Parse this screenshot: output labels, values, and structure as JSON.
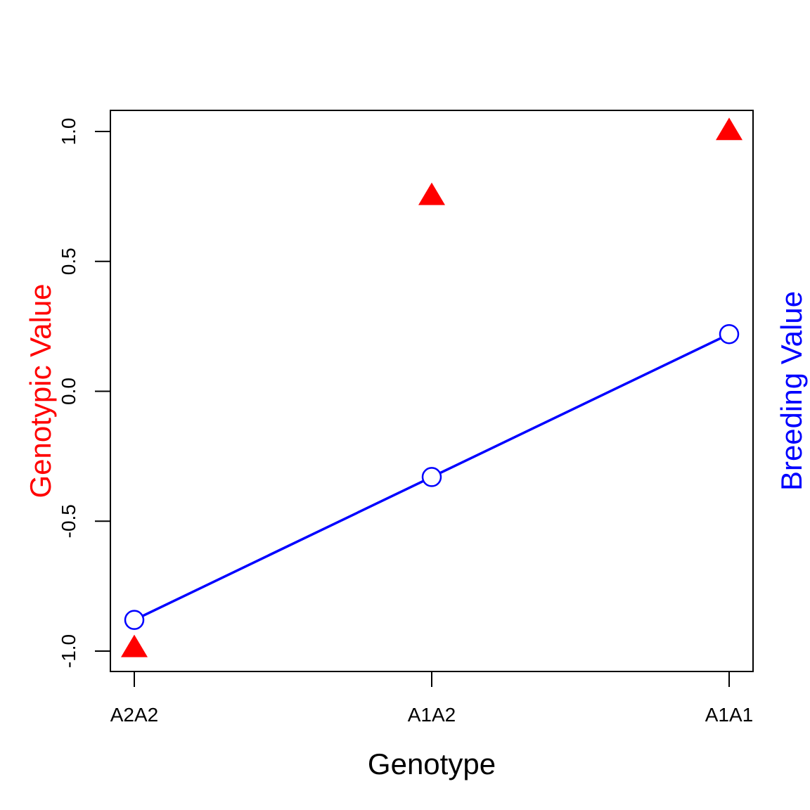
{
  "chart_data": {
    "type": "scatter",
    "title": "",
    "xlabel": "Genotype",
    "ylabel": "Genotypic Value",
    "ylabel_right": "Breeding Value",
    "categories": [
      "A2A2",
      "A1A2",
      "A1A1"
    ],
    "ylim": [
      -1.08,
      1.08
    ],
    "yticks": [
      "-1.0",
      "-0.5",
      "0.0",
      "0.5",
      "1.0"
    ],
    "series": [
      {
        "key": "genotypic",
        "marker": "triangle",
        "connected": false,
        "values": [
          -0.98,
          0.76,
          1.01
        ]
      },
      {
        "key": "breeding",
        "marker": "open-circle",
        "connected": true,
        "values": [
          -0.88,
          -0.33,
          0.22
        ]
      }
    ],
    "grid": false,
    "legend": "none",
    "colors": {
      "genotypic": "#ff0000",
      "breeding": "#0000ff",
      "axis": "#000000"
    }
  }
}
